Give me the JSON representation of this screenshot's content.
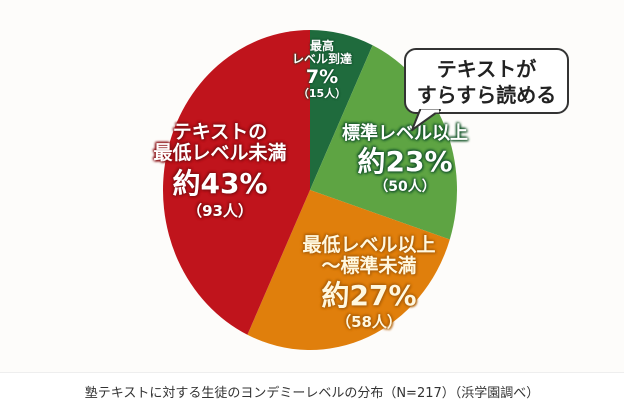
{
  "chart_data": {
    "type": "pie",
    "title": "塾テキストに対する生徒のヨンデミーレベルの分布（N=217）（浜学園調べ）",
    "total_n": 217,
    "start_angle": "12 o'clock, clockwise",
    "slices": [
      {
        "name": "最高レベル到達",
        "percent": 7,
        "count": 15,
        "color": "#1f6b3d"
      },
      {
        "name": "標準レベル以上",
        "percent": 23,
        "count": 50,
        "color": "#5ea443"
      },
      {
        "name": "最低レベル以上～標準未満",
        "percent": 27,
        "count": 58,
        "color": "#e07f0c"
      },
      {
        "name": "テキストの最低レベル未満",
        "percent": 43,
        "count": 93,
        "color": "#c0141c"
      }
    ],
    "annotation": "テキストがすらすら読める"
  },
  "labels": {
    "top": {
      "line1": "最高",
      "line2": "レベル到達",
      "pct": "7%",
      "count": "（15人）"
    },
    "standard": {
      "line1": "標準レベル以上",
      "pct": "約23%",
      "count": "（50人）"
    },
    "middle": {
      "line1": "最低レベル以上",
      "line2": "～標準未満",
      "pct": "約27%",
      "count": "（58人）"
    },
    "below": {
      "line1": "テキストの",
      "line2": "最低レベル未満",
      "pct": "約43%",
      "count": "（93人）"
    }
  },
  "bubble": {
    "line1": "テキストが",
    "line2": "すらすら読める"
  },
  "caption": "塾テキストに対する生徒のヨンデミーレベルの分布（N=217）（浜学園調べ）"
}
